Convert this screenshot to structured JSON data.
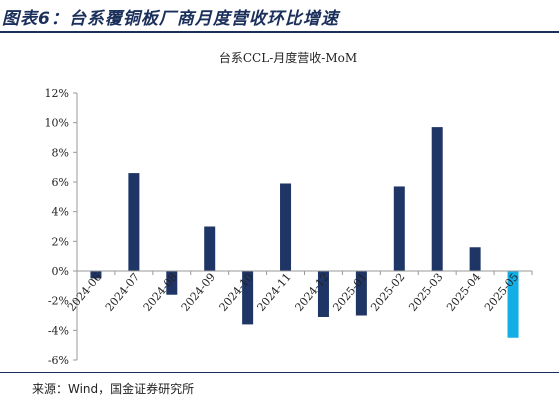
{
  "header": {
    "figure_title": "图表6：台系覆铜板厂商月度营收环比增速"
  },
  "footer": {
    "source": "来源：Wind，国金证券研究所"
  },
  "chart_data": {
    "type": "bar",
    "title": "台系CCL-月度营收-MoM",
    "categories": [
      "2024-06",
      "2024-07",
      "2024-08",
      "2024-09",
      "2024-10",
      "2024-11",
      "2024-12",
      "2025-01",
      "2025-02",
      "2025-03",
      "2025-04",
      "2025-05"
    ],
    "tick_labels": [
      "2024-06",
      "2024-07",
      "2024-08",
      "2024-09",
      "2024-10",
      "2024-11",
      "2024-12",
      "2025-01",
      "2025-02",
      "2025-03",
      "2025-04",
      "2025-05"
    ],
    "values": [
      -0.5,
      6.6,
      -1.6,
      3.0,
      -3.6,
      5.9,
      -3.1,
      -3.0,
      5.7,
      9.7,
      1.6,
      -4.5
    ],
    "ylim": [
      -6,
      12
    ],
    "yticks": [
      -6,
      -4,
      -2,
      0,
      2,
      4,
      6,
      8,
      10,
      12
    ],
    "ytick_suffix": "%",
    "xlabel": "",
    "ylabel": "",
    "grid": false,
    "legend": "none",
    "colors": {
      "bar": "#1f3566",
      "highlight": "#12aee6",
      "axis": "#999999"
    },
    "highlight_index": 11
  }
}
